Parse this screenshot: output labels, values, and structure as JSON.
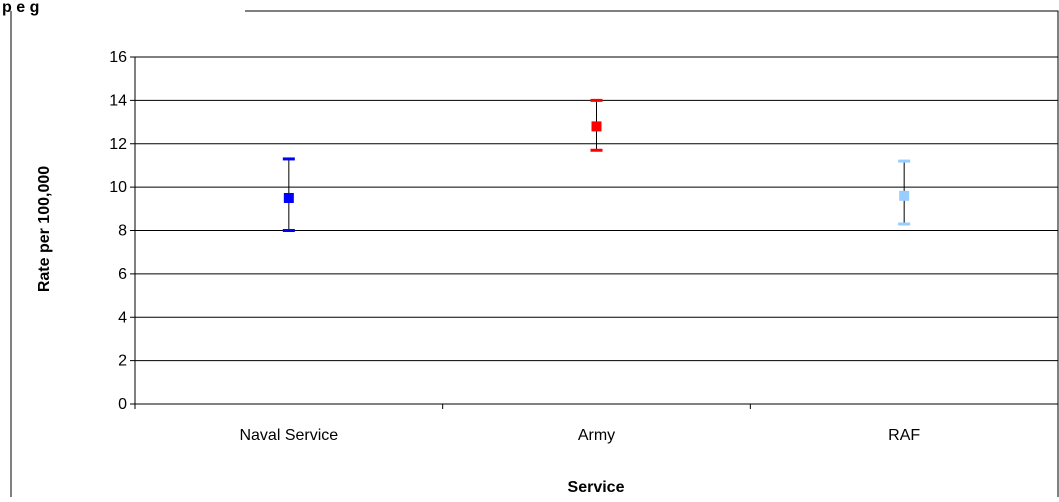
{
  "chart_data": {
    "type": "scatter",
    "title_fragment": "p   e   g",
    "xlabel": "Service",
    "ylabel": "Rate per 100,000",
    "categories": [
      "Naval Service",
      "Army",
      "RAF"
    ],
    "points": [
      {
        "category": "Naval Service",
        "value": 9.5,
        "lower": 8.0,
        "upper": 11.3,
        "color": "#0000ff"
      },
      {
        "category": "Army",
        "value": 12.8,
        "lower": 11.7,
        "upper": 14.0,
        "color": "#ff0000"
      },
      {
        "category": "RAF",
        "value": 9.6,
        "lower": 8.3,
        "upper": 11.2,
        "color": "#99ccff"
      }
    ],
    "ylim": [
      0,
      16
    ],
    "yticks": [
      "0",
      "2",
      "4",
      "6",
      "8",
      "10",
      "12",
      "14",
      "16"
    ],
    "grid": true,
    "legend": "none"
  },
  "colors": {
    "gridline": "#000000",
    "axis": "#000000",
    "errorbar": "#000000",
    "frame": "#000000"
  }
}
